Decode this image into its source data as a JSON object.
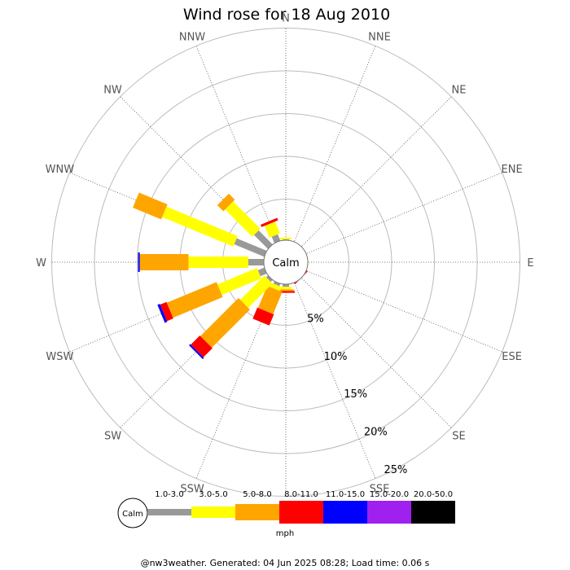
{
  "chart_data": {
    "type": "windrose",
    "title": "Wind rose for 18 Aug 2010",
    "directions": [
      "N",
      "NNE",
      "NE",
      "ENE",
      "E",
      "ESE",
      "SE",
      "SSE",
      "S",
      "SSW",
      "SW",
      "WSW",
      "W",
      "WNW",
      "NW",
      "NNW"
    ],
    "range_labels": [
      "5%",
      "10%",
      "15%",
      "20%",
      "25%"
    ],
    "rmax": 25,
    "center_label": "Calm",
    "speed_bins": [
      {
        "label": "1.0-3.0",
        "color": "#999999"
      },
      {
        "label": "3.0-5.0",
        "color": "#ffff00"
      },
      {
        "label": "5.0-8.0",
        "color": "#ffa500"
      },
      {
        "label": "8.0-11.0",
        "color": "#ff0000"
      },
      {
        "label": "11.0-15.0",
        "color": "#0000ff"
      },
      {
        "label": "15.0-20.0",
        "color": "#a020f0"
      },
      {
        "label": "20.0-50.0",
        "color": "#000000"
      }
    ],
    "unit_label": "mph",
    "segments": {
      "N": [
        0.3,
        0.2,
        0,
        0,
        0,
        0,
        0
      ],
      "NNE": [
        0,
        0,
        0,
        0,
        0,
        0,
        0
      ],
      "NE": [
        0,
        0,
        0,
        0,
        0,
        0,
        0
      ],
      "ENE": [
        0,
        0,
        0,
        0,
        0,
        0,
        0
      ],
      "E": [
        0,
        0.2,
        0,
        0,
        0,
        0,
        0
      ],
      "ESE": [
        0,
        0,
        0,
        0,
        0,
        0,
        0
      ],
      "SE": [
        0,
        0,
        0,
        0.2,
        0,
        0,
        0
      ],
      "SSE": [
        0,
        0,
        0,
        0,
        0,
        0,
        0
      ],
      "S": [
        0.5,
        0.3,
        0.2,
        0.2,
        0,
        0,
        0
      ],
      "SSW": [
        0.5,
        0.5,
        2.8,
        1.4,
        0,
        0,
        0
      ],
      "SW": [
        0.5,
        4.0,
        6.3,
        1.5,
        0.2,
        0,
        0
      ],
      "WSW": [
        1.0,
        5.0,
        6.3,
        0.8,
        0.3,
        0,
        0
      ],
      "W": [
        2.0,
        7.0,
        5.7,
        0,
        0.2,
        0,
        0
      ],
      "WNW": [
        4.0,
        9.0,
        3.6,
        0,
        0,
        0,
        0
      ],
      "NW": [
        2.5,
        4.5,
        1.0,
        0,
        0,
        0,
        0
      ],
      "NNW": [
        1.0,
        1.5,
        0,
        0.3,
        0,
        0,
        0
      ]
    }
  },
  "footer": "@nw3weather. Generated: 04 Jun 2025 08:28; Load time: 0.06 s"
}
